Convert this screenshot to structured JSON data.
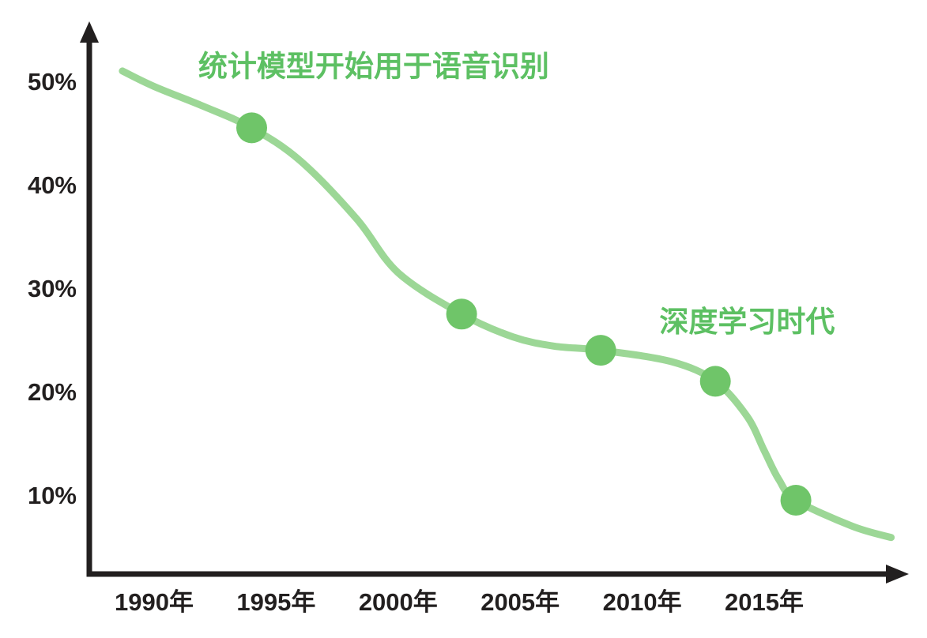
{
  "chart_data": {
    "type": "line",
    "grid": false,
    "legend": "none",
    "x_axis": {
      "tick_labels": [
        "1990年",
        "1995年",
        "2000年",
        "2005年",
        "2010年",
        "2015年"
      ],
      "tick_values": [
        1990,
        1995,
        2000,
        2005,
        2010,
        2015
      ],
      "range": [
        1988.5,
        2021
      ]
    },
    "y_axis": {
      "tick_labels": [
        "50%",
        "40%",
        "30%",
        "20%",
        "10%"
      ],
      "tick_values": [
        50,
        40,
        30,
        20,
        10
      ],
      "unit": "%",
      "range": [
        2.5,
        55
      ]
    },
    "line_points": [
      [
        1988.7,
        51.0
      ],
      [
        1990.0,
        49.5
      ],
      [
        1992.0,
        47.6
      ],
      [
        1994.0,
        45.5
      ],
      [
        1996.0,
        42.3
      ],
      [
        1998.3,
        36.7
      ],
      [
        2000.0,
        31.5
      ],
      [
        2002.6,
        27.5
      ],
      [
        2004.7,
        25.3
      ],
      [
        2006.4,
        24.4
      ],
      [
        2008.3,
        24.0
      ],
      [
        2011.2,
        22.9
      ],
      [
        2013.0,
        21.0
      ],
      [
        2014.3,
        17.6
      ],
      [
        2015.0,
        14.3
      ],
      [
        2015.6,
        11.5
      ],
      [
        2016.3,
        9.5
      ],
      [
        2018.6,
        7.0
      ],
      [
        2020.2,
        5.9
      ]
    ],
    "highlight_points": [
      [
        1994.0,
        45.5
      ],
      [
        2002.6,
        27.5
      ],
      [
        2008.3,
        24.0
      ],
      [
        2013.0,
        21.0
      ],
      [
        2016.3,
        9.5
      ]
    ],
    "annotations": [
      {
        "text": "统计模型开始用于语音识别",
        "anchor_year": 1999.0,
        "anchor_pct": 51.5
      },
      {
        "text": "深度学习时代",
        "anchor_year": 2014.3,
        "anchor_pct": 26.8
      }
    ],
    "colors": {
      "line": "#9CD796",
      "marker": "#6FC569",
      "annotation_text": "#5DC063",
      "axis": "#221F1F",
      "tick_label": "#221F1F",
      "background": "#FFFFFF"
    }
  }
}
